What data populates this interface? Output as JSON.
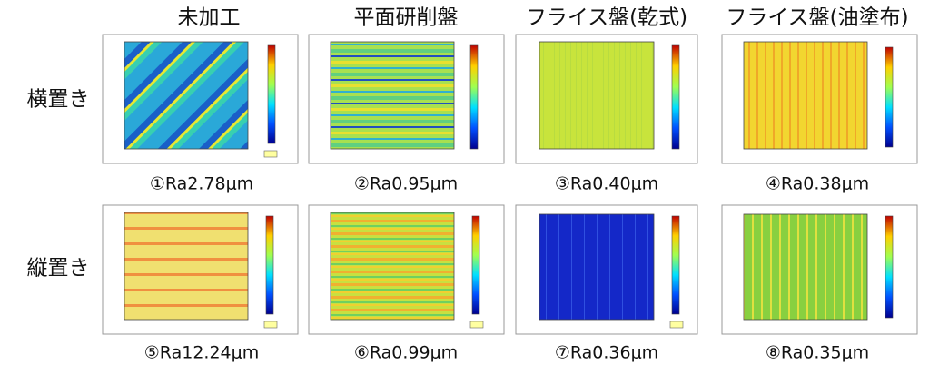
{
  "columns": [
    "未加工",
    "平面研削盤",
    "フライス盤(乾式)",
    "フライス盤(油塗布)"
  ],
  "rows": [
    {
      "label": "横置き",
      "captions": [
        "①Ra2.78μm",
        "②Ra0.95μm",
        "③Ra0.40μm",
        "④Ra0.38μm"
      ]
    },
    {
      "label": "縦置き",
      "captions": [
        "⑤Ra12.24μm",
        "⑥Ra0.99μm",
        "⑦Ra0.36μm",
        "⑧Ra0.35μm"
      ]
    }
  ]
}
